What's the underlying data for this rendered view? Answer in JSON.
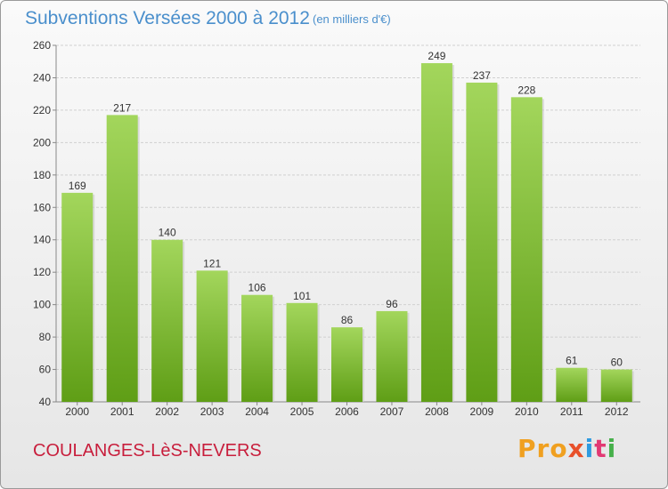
{
  "header": {
    "title": "Subventions Versées 2000 à 2012",
    "unit": "(en milliers d'€)"
  },
  "footer": {
    "place": "COULANGES-LèS-NEVERS",
    "logo": [
      "Pro",
      "x",
      "i",
      "t",
      "i"
    ]
  },
  "colors": {
    "title": "#4a8fcc",
    "place": "#c81e3c",
    "bar_top": "#a3d65c",
    "bar_bottom": "#5f9e16"
  },
  "chart_data": {
    "type": "bar",
    "title": "Subventions Versées 2000 à 2012",
    "subtitle": "(en milliers d'€)",
    "categories": [
      "2000",
      "2001",
      "2002",
      "2003",
      "2004",
      "2005",
      "2006",
      "2007",
      "2008",
      "2009",
      "2010",
      "2011",
      "2012"
    ],
    "values": [
      169,
      217,
      140,
      121,
      106,
      101,
      86,
      96,
      249,
      237,
      228,
      61,
      60
    ],
    "ylim": [
      40,
      260
    ],
    "yticks": [
      40,
      60,
      80,
      100,
      120,
      140,
      160,
      180,
      200,
      220,
      240,
      260
    ],
    "grid": true
  }
}
